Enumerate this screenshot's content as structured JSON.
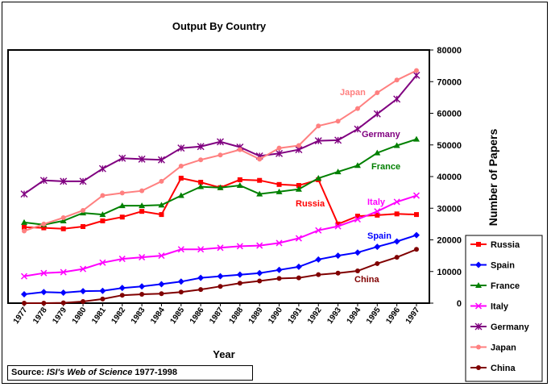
{
  "chart_data": {
    "type": "line",
    "title": "Output By Country",
    "xlabel": "Year",
    "ylabel": "Number of Papers",
    "categories": [
      "1977",
      "1978",
      "1979",
      "1980",
      "1981",
      "1982",
      "1983",
      "1984",
      "1985",
      "1986",
      "1987",
      "1988",
      "1989",
      "1990",
      "1991",
      "1992",
      "1993",
      "1994",
      "1995",
      "1996",
      "1997"
    ],
    "ylim": [
      0,
      80000
    ],
    "yticks": [
      "0",
      "10000",
      "20000",
      "30000",
      "40000",
      "50000",
      "60000",
      "70000",
      "80000"
    ],
    "legend_position": "bottom-right",
    "series": [
      {
        "name": "Russia",
        "color": "#ff0000",
        "marker": "square",
        "label": "Russia",
        "values": [
          24000,
          23800,
          23500,
          24200,
          26000,
          27200,
          29000,
          28000,
          39500,
          38200,
          36500,
          39000,
          38800,
          37500,
          37200,
          39000,
          25000,
          27500,
          27800,
          28200,
          28000
        ]
      },
      {
        "name": "Spain",
        "color": "#0000ff",
        "marker": "diamond",
        "label": "Spain",
        "values": [
          2800,
          3500,
          3300,
          3800,
          3900,
          4800,
          5300,
          6000,
          6800,
          8000,
          8500,
          9000,
          9500,
          10500,
          11500,
          13800,
          15000,
          16000,
          17800,
          19500,
          21500
        ]
      },
      {
        "name": "France",
        "color": "#008000",
        "marker": "triangle",
        "label": "France",
        "values": [
          25500,
          24800,
          26000,
          28500,
          28000,
          30800,
          30800,
          31000,
          34000,
          36800,
          36500,
          37200,
          34500,
          35200,
          36000,
          39500,
          41500,
          43500,
          47500,
          49800,
          51800
        ]
      },
      {
        "name": "Italy",
        "color": "#ff00ff",
        "marker": "x",
        "label": "Italy",
        "values": [
          8500,
          9500,
          9800,
          10800,
          12800,
          14000,
          14500,
          15000,
          17000,
          17000,
          17500,
          18000,
          18200,
          19000,
          20500,
          23000,
          24300,
          26500,
          29000,
          32000,
          34000
        ]
      },
      {
        "name": "Germany",
        "color": "#800080",
        "marker": "star",
        "label": "Germany",
        "values": [
          34500,
          38800,
          38500,
          38500,
          42500,
          45800,
          45500,
          45300,
          49000,
          49500,
          51000,
          49300,
          46500,
          47300,
          48500,
          51300,
          51500,
          55000,
          59800,
          64500,
          72000
        ]
      },
      {
        "name": "Japan",
        "color": "#ff8080",
        "marker": "circle",
        "label": "Japan",
        "values": [
          22800,
          25000,
          27000,
          29300,
          34000,
          34800,
          35500,
          38500,
          43300,
          45300,
          46800,
          48500,
          45500,
          49000,
          49800,
          56000,
          57500,
          61500,
          66500,
          70500,
          73500
        ]
      },
      {
        "name": "China",
        "color": "#800000",
        "marker": "circle",
        "label": "China",
        "values": [
          0,
          0,
          100,
          500,
          1300,
          2500,
          2800,
          3000,
          3500,
          4300,
          5300,
          6300,
          7000,
          7800,
          8000,
          9000,
          9500,
          10200,
          12500,
          14500,
          17000
        ]
      }
    ]
  },
  "source": {
    "prefix": "Source: ",
    "title": "ISI's Web of Science",
    "years": " 1977-1998"
  }
}
